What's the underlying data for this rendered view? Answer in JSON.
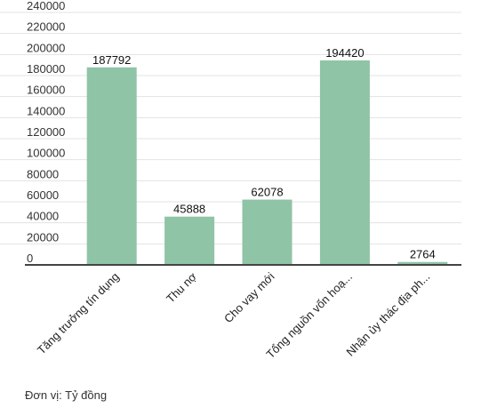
{
  "chart_data": {
    "type": "bar",
    "categories": [
      "Tăng trưởng tín dụng",
      "Thu nợ",
      "Cho vay mới",
      "Tổng nguồn vốn hoạ...",
      "Nhận ủy thác địa ph..."
    ],
    "values": [
      187792,
      45888,
      62078,
      194420,
      2764
    ],
    "data_labels": [
      "187792",
      "45888",
      "62078",
      "194420",
      "2764"
    ],
    "yticks": [
      0,
      20000,
      40000,
      60000,
      80000,
      100000,
      120000,
      140000,
      160000,
      180000,
      200000,
      220000,
      240000
    ],
    "ytick_labels": [
      "0",
      "20000",
      "40000",
      "60000",
      "80000",
      "100000",
      "120000",
      "140000",
      "160000",
      "180000",
      "200000",
      "220000",
      "240000"
    ],
    "ylim": [
      0,
      240000
    ],
    "grid": true,
    "legend": "none",
    "colors": {
      "bar": "#8fc4a6",
      "grid": "#e3e3e3",
      "axis": "#444444"
    }
  },
  "footnote": "Đơn vị: Tỷ đồng"
}
